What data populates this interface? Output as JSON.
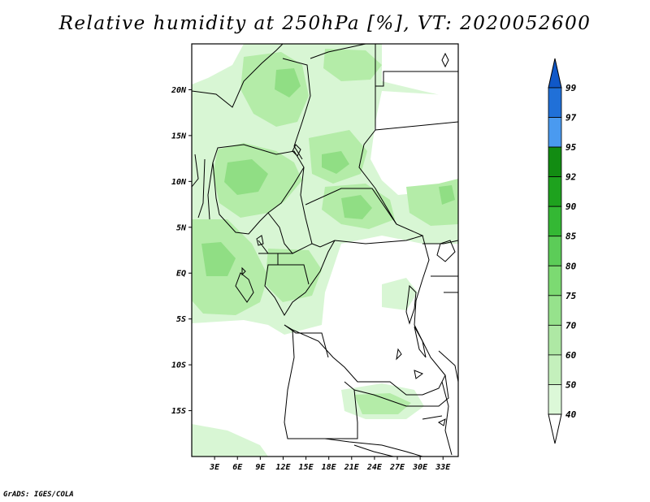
{
  "title": "Relative humidity at 250hPa [%], VT: 2020052600",
  "footer": "GrADS: IGES/COLA",
  "map": {
    "lat_labels": [
      "20N",
      "15N",
      "10N",
      "5N",
      "EQ",
      "5S",
      "10S",
      "15S"
    ],
    "lon_labels": [
      "3E",
      "6E",
      "9E",
      "12E",
      "15E",
      "18E",
      "21E",
      "24E",
      "27E",
      "30E",
      "33E"
    ],
    "lat_values": [
      20,
      15,
      10,
      5,
      0,
      -5,
      -10,
      -15
    ],
    "lon_values": [
      3,
      6,
      9,
      12,
      15,
      18,
      21,
      24,
      27,
      30,
      33
    ],
    "lat_range": [
      -20,
      25
    ],
    "lon_range": [
      0,
      35
    ]
  },
  "colorbar": {
    "labels": [
      "40",
      "50",
      "60",
      "70",
      "75",
      "80",
      "85",
      "90",
      "92",
      "95",
      "97",
      "99"
    ],
    "colors": [
      "#f0fcee",
      "#dcf8d8",
      "#c4f0bc",
      "#aee8a4",
      "#96e28c",
      "#7cda72",
      "#5ccc58",
      "#34b834",
      "#1ea21e",
      "#128c12",
      "#4a9af0",
      "#2070d8",
      "#1058c8"
    ]
  },
  "colors": {
    "humid_light": "#d8f6d4",
    "humid_mid": "#b4eca8",
    "humid_dark": "#90de84",
    "border": "#000000"
  }
}
